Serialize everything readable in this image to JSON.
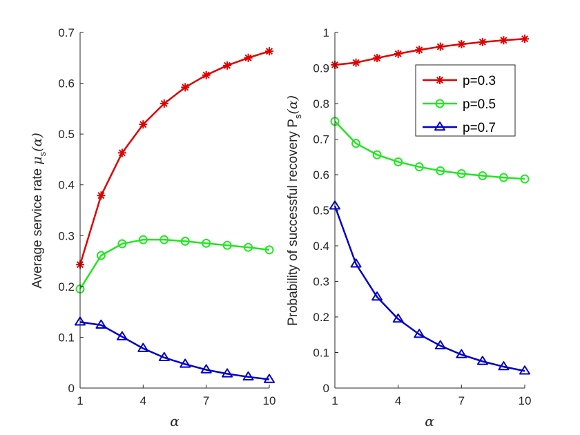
{
  "chart_data": [
    {
      "type": "line",
      "x": [
        1,
        2,
        3,
        4,
        5,
        6,
        7,
        8,
        9,
        10
      ],
      "xlabel": "α",
      "ylabel": "Average service rate μs(α)",
      "ylabel_main": "Average service rate ",
      "ylabel_symbol": "μ",
      "ylabel_sub": "s",
      "ylabel_arg": "(α)",
      "xlim": [
        1,
        10
      ],
      "ylim": [
        0,
        0.7
      ],
      "xticks": [
        "1",
        "4",
        "7",
        "10"
      ],
      "yticks": [
        "0",
        "0.1",
        "0.2",
        "0.3",
        "0.4",
        "0.5",
        "0.6",
        "0.7"
      ],
      "series": [
        {
          "name": "p=0.3",
          "color": "#e00000",
          "marker": "asterisk",
          "values": [
            0.243,
            0.379,
            0.463,
            0.519,
            0.56,
            0.592,
            0.616,
            0.635,
            0.65,
            0.663
          ]
        },
        {
          "name": "p=0.5",
          "color": "#22e622",
          "marker": "circle",
          "values": [
            0.195,
            0.261,
            0.284,
            0.292,
            0.292,
            0.289,
            0.285,
            0.281,
            0.277,
            0.272
          ]
        },
        {
          "name": "p=0.7",
          "color": "#0000c8",
          "marker": "triangle",
          "values": [
            0.13,
            0.124,
            0.101,
            0.078,
            0.06,
            0.047,
            0.036,
            0.028,
            0.022,
            0.017
          ]
        }
      ]
    },
    {
      "type": "line",
      "x": [
        1,
        2,
        3,
        4,
        5,
        6,
        7,
        8,
        9,
        10
      ],
      "xlabel": "α",
      "ylabel": "Probability of successful recovery Ps(α)",
      "ylabel_main": "Probability of successful recovery P",
      "ylabel_sub": "s",
      "ylabel_arg": "(α)",
      "xlim": [
        1,
        10
      ],
      "ylim": [
        0,
        1
      ],
      "xticks": [
        "1",
        "4",
        "7",
        "10"
      ],
      "yticks": [
        "0",
        "0.1",
        "0.2",
        "0.3",
        "0.4",
        "0.5",
        "0.6",
        "0.7",
        "0.8",
        "0.9",
        "1"
      ],
      "legend": "top-right",
      "series": [
        {
          "name": "p=0.3",
          "color": "#e00000",
          "marker": "asterisk",
          "values": [
            0.909,
            0.915,
            0.928,
            0.94,
            0.951,
            0.96,
            0.967,
            0.973,
            0.978,
            0.982
          ]
        },
        {
          "name": "p=0.5",
          "color": "#22e622",
          "marker": "circle",
          "values": [
            0.75,
            0.688,
            0.656,
            0.636,
            0.622,
            0.611,
            0.603,
            0.597,
            0.592,
            0.588
          ]
        },
        {
          "name": "p=0.7",
          "color": "#0000c8",
          "marker": "triangle",
          "values": [
            0.512,
            0.349,
            0.256,
            0.194,
            0.151,
            0.119,
            0.094,
            0.075,
            0.06,
            0.048
          ]
        }
      ]
    }
  ]
}
